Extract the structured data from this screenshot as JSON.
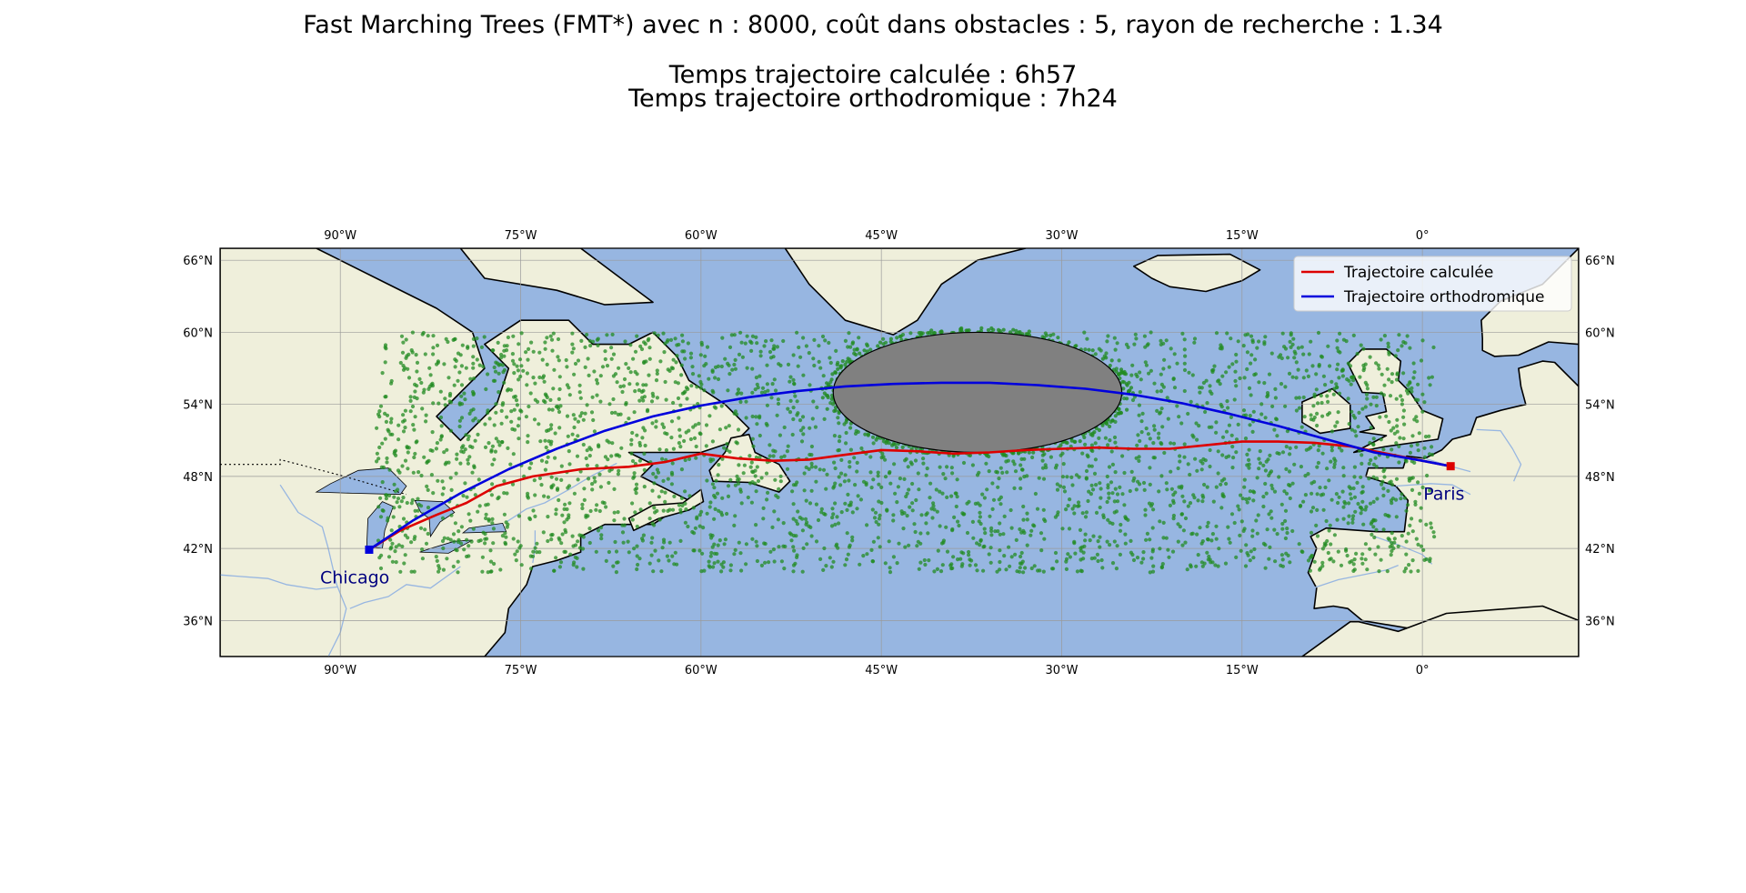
{
  "titles": {
    "line1": "Fast Marching Trees (FMT*) avec n : 8000, coût dans obstacles : 5, rayon de recherche : 1.34",
    "line2": "Temps trajectoire calculée : 6h57",
    "line3": "Temps trajectoire orthodromique : 7h24"
  },
  "map": {
    "projection": "equirectangular",
    "lon_range": [
      -100,
      13
    ],
    "lat_range": [
      33,
      67
    ],
    "lon_ticks": [
      -90,
      -75,
      -60,
      -45,
      -30,
      -15,
      0
    ],
    "lon_tick_labels": [
      "90°W",
      "75°W",
      "60°W",
      "45°W",
      "30°W",
      "15°W",
      "0°"
    ],
    "lat_ticks": [
      66,
      60,
      54,
      48,
      42,
      36
    ],
    "lat_tick_labels": [
      "66°N",
      "60°N",
      "54°N",
      "48°N",
      "42°N",
      "36°N"
    ],
    "gridlines": true,
    "colors": {
      "ocean": "#97b6e1",
      "land": "#efefdb",
      "rivers": "#97b6e1",
      "obstacle": "#808080",
      "samples": "#228b22",
      "computed_path": "#dd0000",
      "great_circle": "#0000dd"
    },
    "sample_region": {
      "lon": [
        -87,
        1
      ],
      "lat": [
        40,
        60
      ],
      "count": 8000
    },
    "obstacle": {
      "center_lon": -37,
      "center_lat": 55,
      "radius_lon": 12,
      "radius_lat": 5
    },
    "cities": [
      {
        "name": "Chicago",
        "lon": -87.6,
        "lat": 41.9
      },
      {
        "name": "Paris",
        "lon": 2.35,
        "lat": 48.85
      }
    ]
  },
  "legend": {
    "position": "top-right",
    "items": [
      {
        "label": "Trajectoire calculée",
        "color": "#dd0000"
      },
      {
        "label": "Trajectoire orthodromique",
        "color": "#0000dd"
      }
    ]
  },
  "chart_data": {
    "type": "line",
    "xlabel": "",
    "ylabel": "",
    "xlim": [
      -100,
      13
    ],
    "ylim": [
      33,
      67
    ],
    "series": [
      {
        "name": "Trajectoire calculée",
        "x": [
          -87.6,
          -85,
          -82,
          -79.5,
          -77,
          -74,
          -70,
          -66,
          -63,
          -60,
          -57,
          -54,
          -51,
          -48,
          -45,
          -42,
          -39,
          -36,
          -33,
          -30,
          -27,
          -24,
          -21,
          -18,
          -15,
          -12,
          -9,
          -6,
          -3,
          0,
          2.35
        ],
        "y": [
          41.9,
          43.5,
          44.8,
          45.8,
          47.2,
          48.0,
          48.6,
          48.8,
          49.2,
          49.9,
          49.5,
          49.3,
          49.4,
          49.8,
          50.2,
          50.1,
          49.9,
          50.0,
          50.2,
          50.3,
          50.4,
          50.3,
          50.3,
          50.6,
          50.9,
          50.9,
          50.8,
          50.5,
          49.9,
          49.3,
          48.85
        ]
      },
      {
        "name": "Trajectoire orthodromique",
        "x": [
          -87.6,
          -84,
          -80,
          -76,
          -72,
          -68,
          -64,
          -60,
          -56,
          -52,
          -48,
          -44,
          -40,
          -36,
          -32,
          -28,
          -24,
          -20,
          -16,
          -12,
          -8,
          -4,
          0,
          2.35
        ],
        "y": [
          41.9,
          44.3,
          46.6,
          48.6,
          50.3,
          51.8,
          53.0,
          53.9,
          54.6,
          55.1,
          55.5,
          55.7,
          55.8,
          55.8,
          55.6,
          55.3,
          54.8,
          54.1,
          53.2,
          52.2,
          51.1,
          50.0,
          49.3,
          48.85
        ]
      }
    ]
  }
}
